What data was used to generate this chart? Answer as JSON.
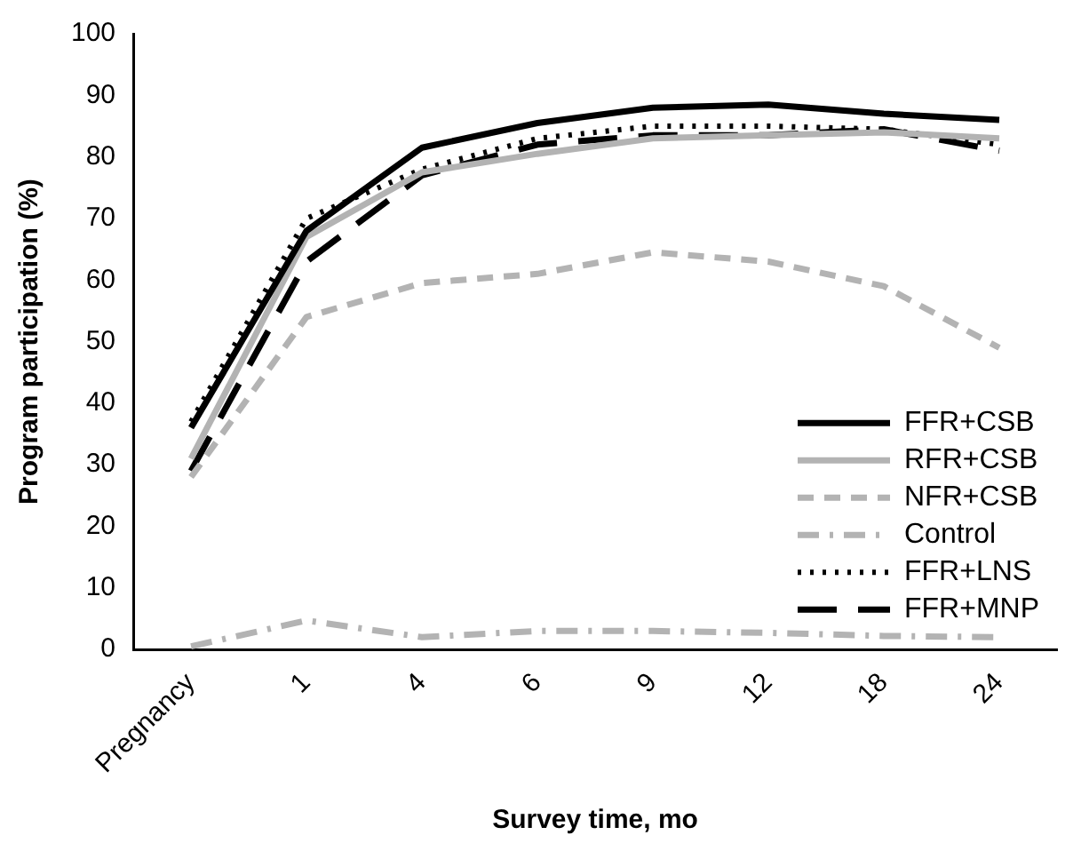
{
  "chart_data": {
    "type": "line",
    "xlabel": "Survey time, mo",
    "ylabel": "Program participation (%)",
    "categories": [
      "Pregnancy",
      "1",
      "4",
      "6",
      "9",
      "12",
      "18",
      "24"
    ],
    "ylim": [
      0,
      100
    ],
    "yticks": [
      0,
      10,
      20,
      30,
      40,
      50,
      60,
      70,
      80,
      90,
      100
    ],
    "grid": false,
    "legend": "bottom right",
    "marker": "none",
    "series": [
      {
        "name": "FFR+CSB",
        "color": "#000000",
        "line_style": "solid",
        "values": [
          36,
          68,
          81.5,
          85.5,
          88,
          88.5,
          87,
          86
        ]
      },
      {
        "name": "RFR+CSB",
        "color": "#b3b3b3",
        "line_style": "solid",
        "values": [
          31,
          67,
          77.5,
          80.5,
          83,
          83.5,
          84,
          83
        ]
      },
      {
        "name": "NFR+CSB",
        "color": "#b3b3b3",
        "line_style": "dashed",
        "values": [
          28,
          54,
          59.5,
          61,
          64.5,
          63,
          59,
          49
        ]
      },
      {
        "name": "Control",
        "color": "#b3b3b3",
        "line_style": "dashdot",
        "values": [
          0.5,
          4.7,
          2,
          3,
          3,
          2.7,
          2.2,
          2
        ]
      },
      {
        "name": "FFR+LNS",
        "color": "#000000",
        "line_style": "dotted",
        "values": [
          37,
          70,
          78,
          83,
          85,
          85,
          84.5,
          82
        ]
      },
      {
        "name": "FFR+MNP",
        "color": "#000000",
        "line_style": "longdash",
        "values": [
          29,
          63,
          77,
          82,
          83.5,
          83.5,
          84.5,
          81
        ]
      }
    ]
  }
}
